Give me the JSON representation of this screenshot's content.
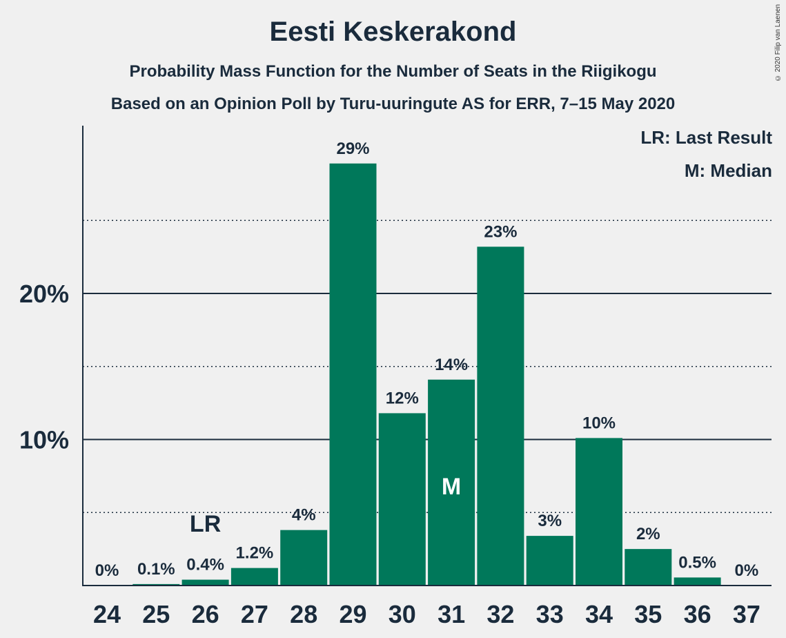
{
  "title": "Eesti Keskerakond",
  "subtitle": "Probability Mass Function for the Number of Seats in the Riigikogu",
  "source": "Based on an Opinion Poll by Turu-uuringute AS for ERR, 7–15 May 2020",
  "copyright": "© 2020 Filip van Laenen",
  "legend": {
    "last_result": "LR: Last Result",
    "median": "M: Median"
  },
  "colors": {
    "bar": "#00785a",
    "background": "#f0f0f0",
    "text": "#1a2b3c"
  },
  "chart_data": {
    "type": "bar",
    "title": "Eesti Keskerakond",
    "xlabel": "",
    "ylabel": "",
    "categories": [
      "24",
      "25",
      "26",
      "27",
      "28",
      "29",
      "30",
      "31",
      "32",
      "33",
      "34",
      "35",
      "36",
      "37"
    ],
    "values": [
      0,
      0.1,
      0.4,
      1.2,
      3.8,
      28.9,
      11.8,
      14.1,
      23.2,
      3.4,
      10.1,
      2.5,
      0.55,
      0
    ],
    "data_labels": [
      "0%",
      "0.1%",
      "0.4%",
      "1.2%",
      "4%",
      "29%",
      "12%",
      "14%",
      "23%",
      "3%",
      "10%",
      "2%",
      "0.5%",
      "0%"
    ],
    "ylim": [
      0,
      31.5
    ],
    "yticks": [
      10,
      20
    ],
    "ytick_labels": [
      "10%",
      "20%"
    ],
    "minor_gridlines": [
      5,
      15,
      25
    ],
    "grid": true,
    "last_result": {
      "category": "26",
      "label": "LR"
    },
    "median": {
      "category": "31",
      "label": "M"
    },
    "legend_position": "top-right"
  }
}
